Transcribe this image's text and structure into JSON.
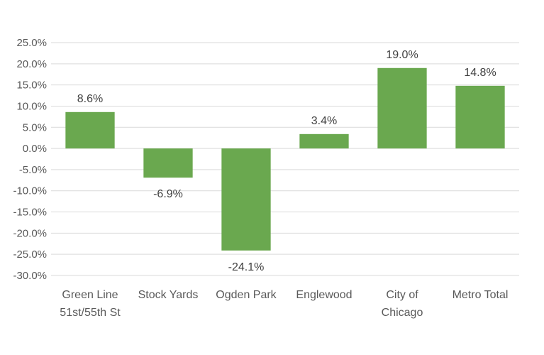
{
  "chart_data": {
    "type": "bar",
    "categories": [
      [
        "Green Line",
        "51st/55th St"
      ],
      [
        "Stock Yards"
      ],
      [
        "Ogden Park"
      ],
      [
        "Englewood"
      ],
      [
        "City of",
        "Chicago"
      ],
      [
        "Metro Total"
      ]
    ],
    "values": [
      8.6,
      -6.9,
      -24.1,
      3.4,
      19.0,
      14.8
    ],
    "data_labels": [
      "8.6%",
      "-6.9%",
      "-24.1%",
      "3.4%",
      "19.0%",
      "14.8%"
    ],
    "title": "",
    "xlabel": "",
    "ylabel": "",
    "ylim": [
      -30,
      25
    ],
    "yticks": [
      25,
      20,
      15,
      10,
      5,
      0,
      -5,
      -10,
      -15,
      -20,
      -25,
      -30
    ],
    "ytick_labels": [
      "25.0%",
      "20.0%",
      "15.0%",
      "10.0%",
      "5.0%",
      "0.0%",
      "-5.0%",
      "-10.0%",
      "-15.0%",
      "-20.0%",
      "-25.0%",
      "-30.0%"
    ],
    "grid": true,
    "legend": "none",
    "bar_color": "#6aa84f"
  }
}
